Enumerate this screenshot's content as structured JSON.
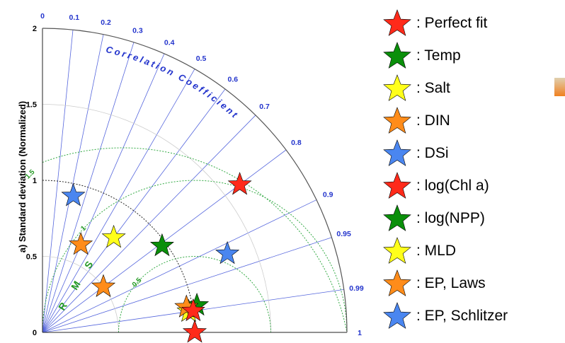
{
  "chart_data": {
    "type": "scatter",
    "subtype": "taylor-diagram",
    "title": "",
    "ylabel": "a) Standard deviation (Normalized)",
    "arc_label": "Correlation Coefficient",
    "rms_label": "R M S",
    "std_ticks": [
      "0",
      "0.5",
      "1",
      "1.5",
      "2"
    ],
    "std_tick_values": [
      0,
      0.5,
      1,
      1.5,
      2
    ],
    "std_max": 2,
    "correlation_ticks": [
      "0",
      "0.1",
      "0.2",
      "0.3",
      "0.4",
      "0.5",
      "0.6",
      "0.7",
      "0.8",
      "0.9",
      "0.95",
      "0.99",
      "1"
    ],
    "correlation_tick_values": [
      0,
      0.1,
      0.2,
      0.3,
      0.4,
      0.5,
      0.6,
      0.7,
      0.8,
      0.9,
      0.95,
      0.99,
      1
    ],
    "rms_ticks": [
      "0.5",
      "1",
      "1.5"
    ],
    "rms_tick_values": [
      0.5,
      1,
      1.5
    ],
    "legend_position": "right",
    "series": [
      {
        "name": "Perfect fit",
        "color": "#ff2a1a",
        "points": [
          {
            "correlation": 1.0,
            "std": 1.0
          }
        ]
      },
      {
        "name": "Temp",
        "color": "#0a8f0a",
        "points": [
          {
            "correlation": 0.985,
            "std": 1.03
          },
          {
            "correlation": 0.81,
            "std": 0.97
          }
        ]
      },
      {
        "name": "Salt",
        "color": "#ffff1a",
        "points": [
          {
            "correlation": 0.99,
            "std": 0.97
          },
          {
            "correlation": 0.6,
            "std": 0.78
          }
        ]
      },
      {
        "name": "DIN",
        "color": "#ff8c1a",
        "points": [
          {
            "correlation": 0.985,
            "std": 0.96
          },
          {
            "correlation": 0.8,
            "std": 0.5
          },
          {
            "correlation": 0.4,
            "std": 0.63
          }
        ]
      },
      {
        "name": "DSi",
        "color": "#4a86f0",
        "points": [
          {
            "correlation": 0.92,
            "std": 1.32
          },
          {
            "correlation": 0.22,
            "std": 0.92
          }
        ]
      },
      {
        "name": "log(Chl a)",
        "color": "#ff2a1a",
        "points": [
          {
            "correlation": 0.99,
            "std": 1.0
          },
          {
            "correlation": 0.8,
            "std": 1.62
          }
        ]
      },
      {
        "name": "log(NPP)",
        "color": "#0a8f0a",
        "points": []
      },
      {
        "name": "MLD",
        "color": "#ffff1a",
        "points": []
      },
      {
        "name": "EP, Laws",
        "color": "#ff8c1a",
        "points": []
      },
      {
        "name": "EP, Schlitzer",
        "color": "#4a86f0",
        "points": []
      }
    ]
  },
  "colors": {
    "radial_lines": "#5566dd",
    "rms_circles": "#33aa44",
    "outer_arc": "#555555",
    "tick_labels_corr": "#2233cc",
    "tick_labels_rms": "#229922"
  },
  "legend": {
    "entries": [
      {
        "label": ": Perfect fit",
        "color": "#ff2a1a"
      },
      {
        "label": ": Temp",
        "color": "#0a8f0a"
      },
      {
        "label": ": Salt",
        "color": "#ffff1a"
      },
      {
        "label": ": DIN",
        "color": "#ff8c1a"
      },
      {
        "label": ": DSi",
        "color": "#4a86f0"
      },
      {
        "label": ": log(Chl a)",
        "color": "#ff2a1a"
      },
      {
        "label": ": log(NPP)",
        "color": "#0a8f0a"
      },
      {
        "label": ": MLD",
        "color": "#ffff1a"
      },
      {
        "label": ": EP, Laws",
        "color": "#ff8c1a"
      },
      {
        "label": ": EP, Schlitzer",
        "color": "#4a86f0"
      }
    ]
  }
}
